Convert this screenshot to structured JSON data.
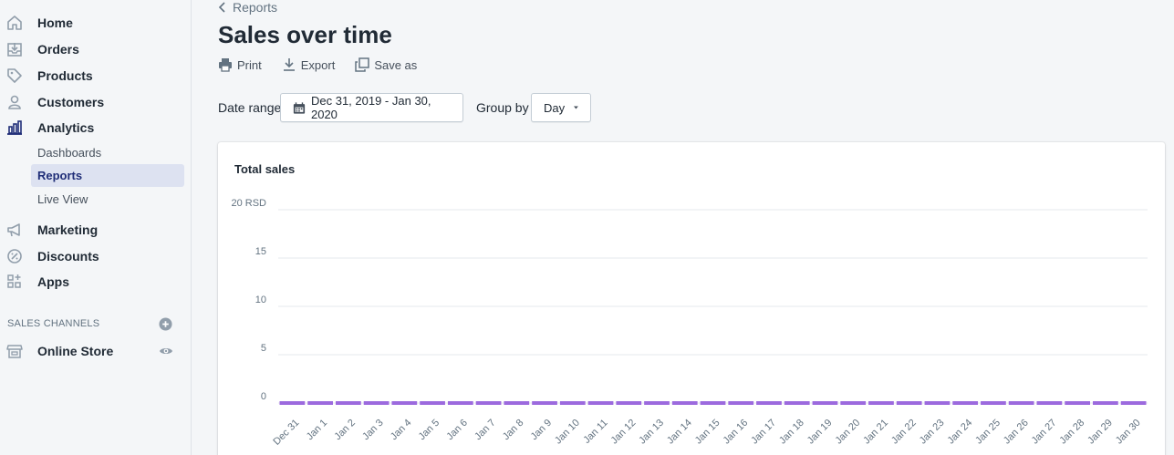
{
  "sidebar": {
    "items": [
      {
        "label": "Home",
        "icon": "home-icon"
      },
      {
        "label": "Orders",
        "icon": "orders-icon"
      },
      {
        "label": "Products",
        "icon": "tag-icon"
      },
      {
        "label": "Customers",
        "icon": "person-icon"
      },
      {
        "label": "Analytics",
        "icon": "bar-chart-icon"
      }
    ],
    "analytics_sub": [
      {
        "label": "Dashboards"
      },
      {
        "label": "Reports",
        "active": true
      },
      {
        "label": "Live View"
      }
    ],
    "items2": [
      {
        "label": "Marketing",
        "icon": "megaphone-icon"
      },
      {
        "label": "Discounts",
        "icon": "discount-icon"
      },
      {
        "label": "Apps",
        "icon": "apps-icon"
      }
    ],
    "sales_channels_title": "SALES CHANNELS",
    "online_store": "Online Store"
  },
  "breadcrumb": "Reports",
  "title": "Sales over time",
  "actions": {
    "print": "Print",
    "export": "Export",
    "save_as": "Save as"
  },
  "filters": {
    "date_range_label": "Date range",
    "date_range_value": "Dec 31, 2019 - Jan 30, 2020",
    "group_by_label": "Group by",
    "group_by_value": "Day"
  },
  "colors": {
    "accent": "#202e78",
    "bar": "#9c6ade",
    "active_bg": "#dde2f1"
  },
  "chart_data": {
    "type": "bar",
    "title": "Total sales",
    "ylabel": "",
    "xlabel": "",
    "y_ticks": [
      "20 RSD",
      "15",
      "10",
      "5",
      "0"
    ],
    "ylim": [
      0,
      20
    ],
    "categories": [
      "Dec 31",
      "Jan 1",
      "Jan 2",
      "Jan 3",
      "Jan 4",
      "Jan 5",
      "Jan 6",
      "Jan 7",
      "Jan 8",
      "Jan 9",
      "Jan 10",
      "Jan 11",
      "Jan 12",
      "Jan 13",
      "Jan 14",
      "Jan 15",
      "Jan 16",
      "Jan 17",
      "Jan 18",
      "Jan 19",
      "Jan 20",
      "Jan 21",
      "Jan 22",
      "Jan 23",
      "Jan 24",
      "Jan 25",
      "Jan 26",
      "Jan 27",
      "Jan 28",
      "Jan 29",
      "Jan 30"
    ],
    "values": [
      0,
      0,
      0,
      0,
      0,
      0,
      0,
      0,
      0,
      0,
      0,
      0,
      0,
      0,
      0,
      0,
      0,
      0,
      0,
      0,
      0,
      0,
      0,
      0,
      0,
      0,
      0,
      0,
      0,
      0,
      0
    ]
  }
}
